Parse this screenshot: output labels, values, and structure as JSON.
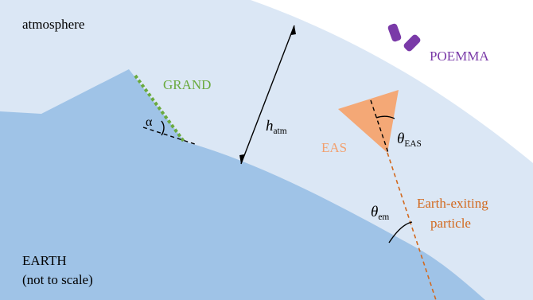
{
  "labels": {
    "atmosphere": "atmosphere",
    "grand": "GRAND",
    "poemma": "POEMMA",
    "eas": "EAS",
    "earth_line1": "EARTH",
    "earth_line2": "(not to scale)",
    "particle_line1": "Earth-exiting",
    "particle_line2": "particle",
    "alpha": "α",
    "h_symbol": "h",
    "h_sub": "atm",
    "theta_eas_symbol": "θ",
    "theta_eas_sub": "EAS",
    "theta_em_symbol": "θ",
    "theta_em_sub": "em"
  },
  "colors": {
    "atmosphere_fill": "#dbe7f5",
    "earth_fill": "#9fc3e7",
    "grand_green": "#6aaa3e",
    "poemma_purple": "#7a3aa8",
    "eas_orange": "#f4a876",
    "eas_label": "#f2a06e",
    "particle_orange": "#d2691e",
    "ink": "#000000"
  }
}
